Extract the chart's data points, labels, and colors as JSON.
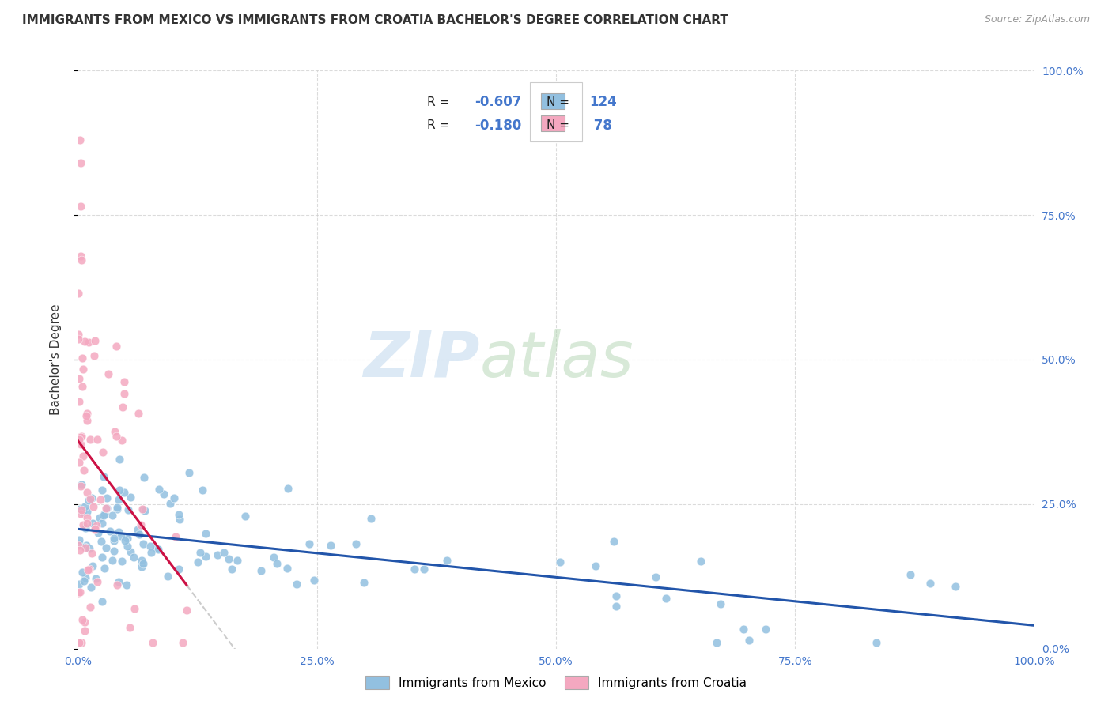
{
  "title": "IMMIGRANTS FROM MEXICO VS IMMIGRANTS FROM CROATIA BACHELOR'S DEGREE CORRELATION CHART",
  "source": "Source: ZipAtlas.com",
  "ylabel": "Bachelor's Degree",
  "legend_mexico_label": "Immigrants from Mexico",
  "legend_croatia_label": "Immigrants from Croatia",
  "mexico_R": -0.607,
  "mexico_N": 124,
  "croatia_R": -0.18,
  "croatia_N": 78,
  "mexico_color": "#92c0e0",
  "croatia_color": "#f4a8c0",
  "trendline_mexico_color": "#2255aa",
  "trendline_croatia_color": "#cc1144",
  "trendline_croatia_dash_color": "#cccccc",
  "background_color": "#ffffff",
  "grid_color": "#cccccc",
  "watermark_zip_color": "#c8dff0",
  "watermark_atlas_color": "#c8e8c8",
  "tick_label_color": "#4477cc",
  "text_color": "#333333",
  "source_color": "#999999"
}
